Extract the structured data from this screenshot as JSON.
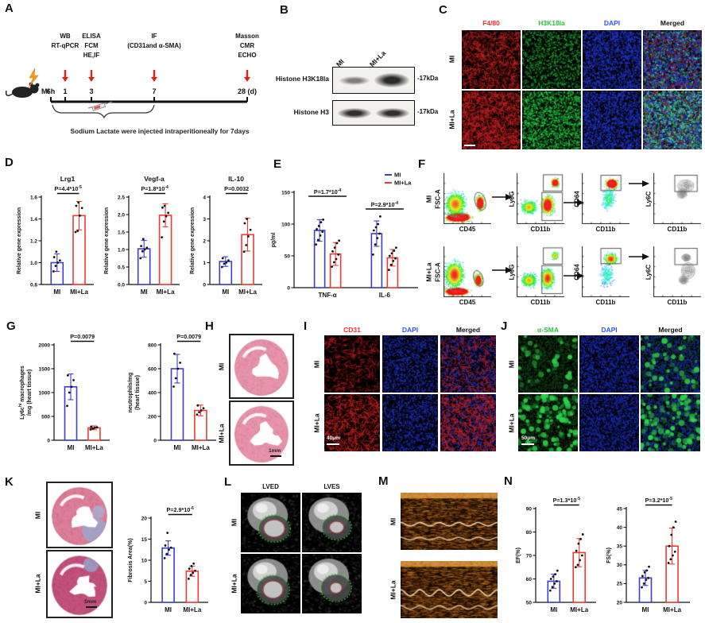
{
  "colors": {
    "mi_blue": "#3a3fd1",
    "la_red": "#ee3a35",
    "arrow_red": "#e02318"
  },
  "panels": {
    "A": {
      "letter": "A",
      "mi": "MI",
      "ticks": [
        {
          "label": "6h",
          "above": []
        },
        {
          "label": "1",
          "above": [
            "WB",
            "RT-qPCR"
          ]
        },
        {
          "label": "3",
          "above": [
            "ELISA",
            "FCM",
            "HE,IF"
          ]
        },
        {
          "label": "7",
          "above": [
            "IF",
            "(CD31and α-SMA)"
          ]
        },
        {
          "label": "28 (d)",
          "above": [
            "Masson",
            "CMR",
            "ECHO"
          ]
        }
      ],
      "caption": "Sodium Lactate were injected intraperitioneally for 7days",
      "arrow_color": "#e02318"
    },
    "B": {
      "letter": "B",
      "lanes": [
        "MI",
        "MI+La"
      ],
      "rows": [
        {
          "label": "Histone H3K18la",
          "kda": "-17kDa"
        },
        {
          "label": "Histone H3",
          "kda": "-17kDa"
        }
      ]
    },
    "C": {
      "letter": "C",
      "columns": [
        {
          "label": "F4/80",
          "color": "#ff2d2d"
        },
        {
          "label": "H3K18la",
          "color": "#27c23c"
        },
        {
          "label": "DAPI",
          "color": "#2f54ff"
        },
        {
          "label": "Merged",
          "color": "#111111"
        }
      ],
      "rows": [
        "MI",
        "MI+La"
      ]
    },
    "D": {
      "letter": "D"
    },
    "E": {
      "letter": "E"
    },
    "F": {
      "letter": "F",
      "rows": [
        "MI",
        "MI+La"
      ],
      "plots": [
        {
          "y": "FSC-A",
          "x": "CD45"
        },
        {
          "y": "Ly6G",
          "x": "CD11b"
        },
        {
          "y": "CD64",
          "x": "CD11b"
        },
        {
          "y": "Ly6C",
          "x": "CD11b"
        }
      ]
    },
    "G": {
      "letter": "G"
    },
    "H": {
      "letter": "H",
      "rows": [
        "MI",
        "MI+La"
      ],
      "scale": "1mm"
    },
    "I": {
      "letter": "I",
      "columns": [
        {
          "label": "CD31",
          "color": "#ff2d2d"
        },
        {
          "label": "DAPI",
          "color": "#2f54ff"
        },
        {
          "label": "Merged",
          "color": "#111111"
        }
      ],
      "rows": [
        "MI",
        "MI+La"
      ],
      "scale": "40μm"
    },
    "J": {
      "letter": "J",
      "columns": [
        {
          "label": "α-SMA",
          "color": "#27c23c"
        },
        {
          "label": "DAPI",
          "color": "#2f54ff"
        },
        {
          "label": "Merged",
          "color": "#111111"
        }
      ],
      "rows": [
        "MI",
        "MI+La"
      ],
      "scale": "50μm"
    },
    "K": {
      "letter": "K",
      "rows": [
        "MI",
        "MI+La"
      ],
      "scale": "1mm"
    },
    "L": {
      "letter": "L",
      "columns": [
        "LVED",
        "LVES"
      ],
      "rows": [
        "MI",
        "MI+La"
      ]
    },
    "M": {
      "letter": "M",
      "rows": [
        "MI",
        "MI+La"
      ]
    },
    "N": {
      "letter": "N"
    }
  },
  "chart_data": [
    {
      "id": "lrg1",
      "type": "bar",
      "title": "Lrg1",
      "p": "P=4.4*10^-5^",
      "ylabel_lines": [
        "Relative gene expression"
      ],
      "ylim": [
        0.8,
        1.6
      ],
      "yticks": [
        0.8,
        1.0,
        1.2,
        1.4,
        1.6
      ],
      "ytick_labels": [
        "0.8",
        "1.0",
        "1.2",
        "1.4",
        "1.6"
      ],
      "categories": [
        "MI",
        "MI+La"
      ],
      "values": [
        1.0,
        1.43
      ],
      "errors": [
        0.08,
        0.13
      ],
      "points": [
        [
          0.92,
          0.97,
          1.0,
          1.02,
          1.05,
          1.1
        ],
        [
          1.28,
          1.29,
          1.43,
          1.5,
          1.52,
          1.55
        ]
      ],
      "colors": [
        "#3a3fd1",
        "#ee3a35"
      ],
      "ml": 36,
      "mt": 36
    },
    {
      "id": "vegfa",
      "type": "bar",
      "title": "Vegf-a",
      "p": "P=1.8*10^-4^",
      "ylabel_lines": [
        "Relative gene expression"
      ],
      "ylim": [
        0,
        2.5
      ],
      "yticks": [
        0,
        0.5,
        1.0,
        1.5,
        2.0,
        2.5
      ],
      "ytick_labels": [
        "0.0",
        "0.5",
        "1.0",
        "1.5",
        "2.0",
        "2.5"
      ],
      "categories": [
        "MI",
        "MI+La"
      ],
      "values": [
        1.02,
        1.98
      ],
      "errors": [
        0.24,
        0.33
      ],
      "points": [
        [
          0.75,
          0.95,
          1.0,
          1.05,
          1.1,
          1.3
        ],
        [
          1.35,
          1.8,
          1.95,
          2.05,
          2.2,
          2.25
        ]
      ],
      "colors": [
        "#3a3fd1",
        "#ee3a35"
      ],
      "ml": 36,
      "mt": 36
    },
    {
      "id": "il10",
      "type": "bar",
      "title": "IL-10",
      "p": "P=0.0032",
      "ylabel_lines": [
        "Relative gene expression"
      ],
      "ylim": [
        0,
        4
      ],
      "yticks": [
        0,
        1,
        2,
        3,
        4
      ],
      "ytick_labels": [
        "0",
        "1",
        "2",
        "3",
        "4"
      ],
      "categories": [
        "MI",
        "MI+La"
      ],
      "values": [
        1.05,
        2.28
      ],
      "errors": [
        0.22,
        0.75
      ],
      "points": [
        [
          0.8,
          0.95,
          1.0,
          1.1,
          1.2
        ],
        [
          1.5,
          1.8,
          2.2,
          2.5,
          2.8,
          3.0
        ]
      ],
      "colors": [
        "#3a3fd1",
        "#ee3a35"
      ],
      "ml": 30,
      "mt": 36
    },
    {
      "id": "cytokines",
      "type": "bar",
      "legend": true,
      "categories": [
        "TNF-α",
        "IL-6"
      ],
      "series": [
        {
          "name": "MI",
          "color": "#3a3fd1",
          "values": [
            90,
            85
          ],
          "errors": [
            17,
            20
          ],
          "points": [
            [
              68,
              75,
              82,
              88,
              92,
              97,
              103,
              107
            ],
            [
              52,
              68,
              78,
              85,
              90,
              95,
              100,
              112
            ]
          ]
        },
        {
          "name": "MI+La",
          "color": "#ee3a35",
          "values": [
            53,
            47
          ],
          "errors": [
            18,
            13
          ],
          "points": [
            [
              33,
              40,
              45,
              52,
              57,
              63,
              70,
              74
            ],
            [
              28,
              36,
              42,
              46,
              50,
              54,
              58,
              63
            ]
          ]
        }
      ],
      "p_list": [
        "P=1.7*10^-4^",
        "P=2.9*10^-4^"
      ],
      "ylabel_lines": [
        "pg/ml"
      ],
      "ylim": [
        0,
        150
      ],
      "yticks": [
        0,
        50,
        100,
        150
      ],
      "ytick_labels": [
        "0",
        "50",
        "100",
        "150"
      ],
      "ml": 34,
      "mt": 34
    },
    {
      "id": "ly6c",
      "type": "bar",
      "p": "P=0.0079",
      "ylabel_lines": [
        "Ly6c^hi^ macrophages",
        "/mg (heart tissue)"
      ],
      "ylim": [
        0,
        2000
      ],
      "yticks": [
        0,
        500,
        1000,
        1500,
        2000
      ],
      "ytick_labels": [
        "0",
        "500",
        "1000",
        "1500",
        "2000"
      ],
      "categories": [
        "MI",
        "MI+La"
      ],
      "values": [
        1120,
        260
      ],
      "errors": [
        270,
        40
      ],
      "points": [
        [
          720,
          1000,
          1120,
          1260,
          1360
        ],
        [
          225,
          245,
          260,
          270,
          285
        ]
      ],
      "colors": [
        "#3a3fd1",
        "#ee3a35"
      ],
      "ml": 46,
      "mt": 26
    },
    {
      "id": "neut",
      "type": "bar",
      "p": "P=0.0079",
      "ylabel_lines": [
        "neutrophils/mg",
        "(heart tissue)"
      ],
      "ylim": [
        0,
        800
      ],
      "yticks": [
        0,
        200,
        400,
        600,
        800
      ],
      "ytick_labels": [
        "0",
        "200",
        "400",
        "600",
        "800"
      ],
      "categories": [
        "MI",
        "MI+La"
      ],
      "values": [
        600,
        250
      ],
      "errors": [
        120,
        45
      ],
      "points": [
        [
          450,
          520,
          600,
          650,
          725
        ],
        [
          215,
          235,
          250,
          268,
          292
        ]
      ],
      "colors": [
        "#3a3fd1",
        "#ee3a35"
      ],
      "ml": 44,
      "mt": 26
    },
    {
      "id": "fibrosis",
      "type": "bar",
      "p": "P=2.9*10^-6^",
      "ylabel_lines": [
        "Fibrosis Area(%)"
      ],
      "ylim": [
        0,
        20
      ],
      "yticks": [
        0,
        5,
        10,
        15,
        20
      ],
      "ytick_labels": [
        "0",
        "5",
        "10",
        "15",
        "20"
      ],
      "categories": [
        "MI",
        "MI+La"
      ],
      "values": [
        12.9,
        7.4
      ],
      "errors": [
        1.7,
        1.2
      ],
      "points": [
        [
          10.5,
          11.5,
          12.5,
          13,
          13.5,
          16.5
        ],
        [
          5.6,
          6.5,
          7,
          7.5,
          8,
          8.6,
          9.2
        ]
      ],
      "colors": [
        "#3a3fd1",
        "#ee3a35"
      ],
      "ml": 34,
      "mt": 26
    },
    {
      "id": "ef",
      "type": "bar",
      "p": "P=1.3*10^-5^",
      "ylabel_lines": [
        "EF(%)"
      ],
      "ylim": [
        50,
        90
      ],
      "yticks": [
        50,
        60,
        70,
        80,
        90
      ],
      "ytick_labels": [
        "50",
        "60",
        "70",
        "80",
        "90"
      ],
      "categories": [
        "MI",
        "MI+La"
      ],
      "values": [
        59,
        71.2
      ],
      "errors": [
        3,
        6
      ],
      "points": [
        [
          55,
          56.5,
          58,
          59,
          60,
          61,
          62,
          63.5
        ],
        [
          65,
          66,
          68,
          70,
          72,
          75,
          77,
          79
        ]
      ],
      "colors": [
        "#3a3fd1",
        "#ee3a35"
      ],
      "ml": 30,
      "mt": 26
    },
    {
      "id": "fs",
      "type": "bar",
      "p": "P=3.2*10^-5^",
      "ylabel_lines": [
        "FS(%)"
      ],
      "ylim": [
        20,
        45
      ],
      "yticks": [
        20,
        25,
        30,
        35,
        40,
        45
      ],
      "ytick_labels": [
        "20",
        "25",
        "30",
        "35",
        "40",
        "45"
      ],
      "categories": [
        "MI",
        "MI+La"
      ],
      "values": [
        26.5,
        35
      ],
      "errors": [
        2,
        4.8
      ],
      "points": [
        [
          24,
          25,
          26,
          26.5,
          27,
          28,
          28.5,
          29.5
        ],
        [
          30.5,
          31.5,
          32.5,
          33.5,
          35,
          38,
          40,
          41.5
        ]
      ],
      "colors": [
        "#3a3fd1",
        "#ee3a35"
      ],
      "ml": 30,
      "mt": 26
    }
  ]
}
